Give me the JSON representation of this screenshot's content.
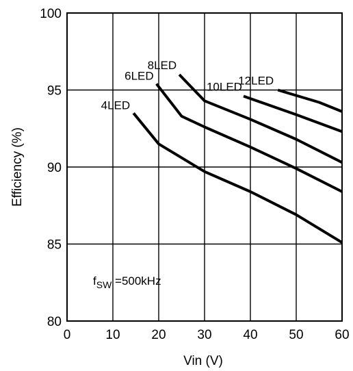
{
  "chart_data": {
    "type": "line",
    "xlabel": "Vin (V)",
    "ylabel": "Efficiency (%)",
    "xlim": [
      0,
      60
    ],
    "ylim": [
      80,
      100
    ],
    "xticks": [
      0,
      10,
      20,
      30,
      40,
      50,
      60
    ],
    "yticks": [
      80,
      85,
      90,
      95,
      100
    ],
    "grid": true,
    "annotation": {
      "prefix": "f",
      "subscript": "SW",
      "suffix": " =500kHz"
    },
    "series": [
      {
        "name": "4LED",
        "points": [
          [
            14.5,
            93.5
          ],
          [
            20,
            91.5
          ],
          [
            30,
            89.7
          ],
          [
            40,
            88.4
          ],
          [
            50,
            86.9
          ],
          [
            60,
            85.1
          ]
        ]
      },
      {
        "name": "6LED",
        "points": [
          [
            19.5,
            95.4
          ],
          [
            25,
            93.3
          ],
          [
            30,
            92.6
          ],
          [
            40,
            91.3
          ],
          [
            50,
            89.9
          ],
          [
            60,
            88.4
          ]
        ]
      },
      {
        "name": "8LED",
        "points": [
          [
            24.5,
            96.0
          ],
          [
            30,
            94.3
          ],
          [
            40,
            93.1
          ],
          [
            50,
            91.8
          ],
          [
            60,
            90.3
          ]
        ]
      },
      {
        "name": "10LED",
        "points": [
          [
            38.5,
            94.6
          ],
          [
            50,
            93.4
          ],
          [
            60,
            92.3
          ]
        ]
      },
      {
        "name": "12LED",
        "points": [
          [
            46,
            95.0
          ],
          [
            55,
            94.2
          ],
          [
            60,
            93.6
          ]
        ]
      }
    ]
  }
}
